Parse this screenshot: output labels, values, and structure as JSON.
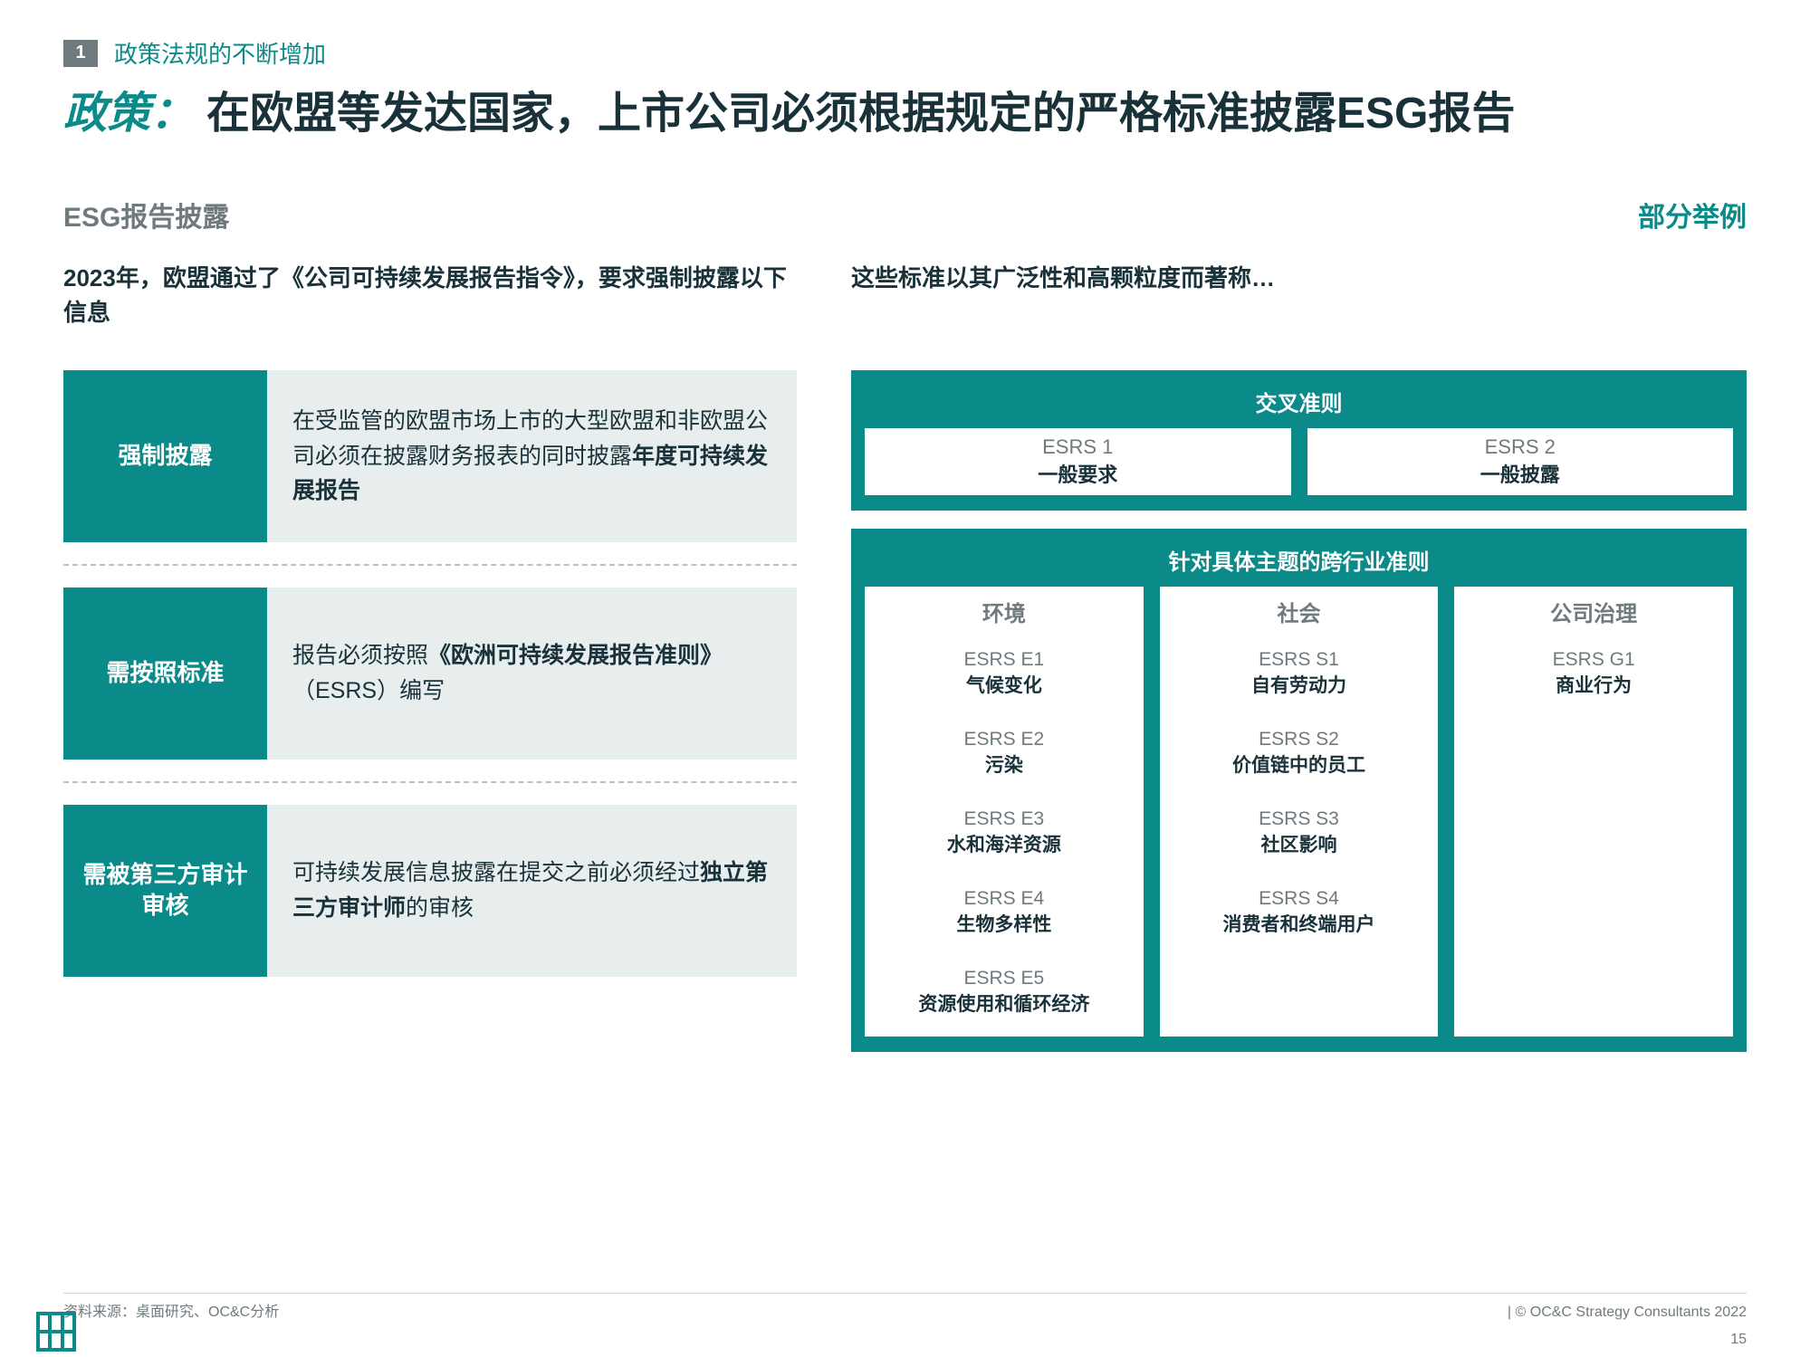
{
  "colors": {
    "teal": "#0b8a8a",
    "grey": "#6f7a7e",
    "lightgrey_bg": "#e8eeee",
    "text": "#19323a"
  },
  "kicker": {
    "num": "1",
    "text": "政策法规的不断增加"
  },
  "title": {
    "prefix": "政策：",
    "main": "在欧盟等发达国家，上市公司必须根据规定的严格标准披露ESG报告"
  },
  "subhead": {
    "left": "ESG报告披露",
    "right": "部分举例"
  },
  "left": {
    "lead": "2023年，欧盟通过了《公司可持续发展报告指令》，要求强制披露以下信息",
    "rows": [
      {
        "label": "强制披露",
        "body_plain": "在受监管的欧盟市场上市的大型欧盟和非欧盟公司必须在披露财务报表的同时披露",
        "body_bold": "年度可持续发展报告"
      },
      {
        "label": "需按照标准",
        "body_pre": "报告必须按照",
        "body_bold_mid": "《欧洲可持续发展报告准则》",
        "body_post": "（ESRS）编写"
      },
      {
        "label": "需被第三方审计审核",
        "body_pre": "可持续发展信息披露在提交之前必须经过",
        "body_bold_mid": "独立第三方审计师",
        "body_post": "的审核"
      }
    ]
  },
  "right": {
    "lead": "这些标准以其广泛性和高颗粒度而著称…",
    "panel1": {
      "title": "交叉准则",
      "cards": [
        {
          "code": "ESRS 1",
          "name": "一般要求"
        },
        {
          "code": "ESRS 2",
          "name": "一般披露"
        }
      ]
    },
    "panel2": {
      "title": "针对具体主题的跨行业准则",
      "cols": [
        {
          "head": "环境",
          "items": [
            {
              "code": "ESRS E1",
              "name": "气候变化"
            },
            {
              "code": "ESRS E2",
              "name": "污染"
            },
            {
              "code": "ESRS E3",
              "name": "水和海洋资源"
            },
            {
              "code": "ESRS E4",
              "name": "生物多样性"
            },
            {
              "code": "ESRS E5",
              "name": "资源使用和循环经济"
            }
          ]
        },
        {
          "head": "社会",
          "items": [
            {
              "code": "ESRS S1",
              "name": "自有劳动力"
            },
            {
              "code": "ESRS S2",
              "name": "价值链中的员工"
            },
            {
              "code": "ESRS S3",
              "name": "社区影响"
            },
            {
              "code": "ESRS S4",
              "name": "消费者和终端用户"
            }
          ]
        },
        {
          "head": "公司治理",
          "items": [
            {
              "code": "ESRS G1",
              "name": "商业行为"
            }
          ]
        }
      ]
    }
  },
  "footer": {
    "source": "资料来源：桌面研究、OC&C分析",
    "right": "| © OC&C Strategy Consultants 2022",
    "page": "15"
  }
}
